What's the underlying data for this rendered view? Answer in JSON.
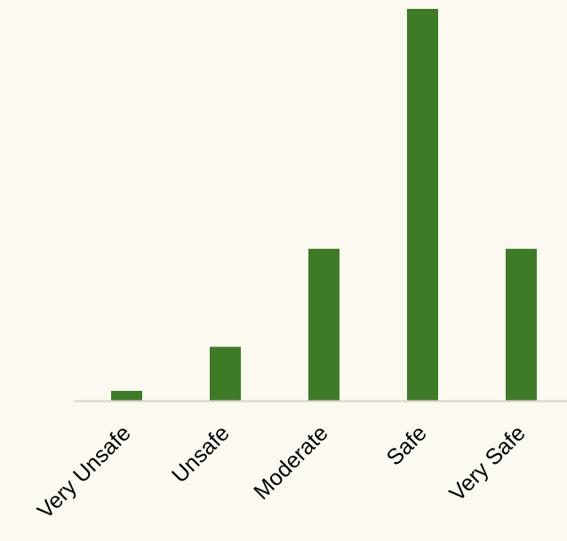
{
  "chart_data": {
    "type": "bar",
    "title": "",
    "xlabel": "",
    "ylabel": "",
    "categories": [
      "Very Unsafe",
      "Unsafe",
      "Moderate",
      "Safe",
      "Very Safe"
    ],
    "values": [
      2,
      11,
      31,
      80,
      31
    ],
    "ylim": [
      0,
      80
    ],
    "grid": false,
    "legend": "none"
  },
  "colors": {
    "background": "#FCF9F1",
    "bar": "#3E7B27",
    "axis_line": "#D8D4CC",
    "text": "#000000"
  }
}
